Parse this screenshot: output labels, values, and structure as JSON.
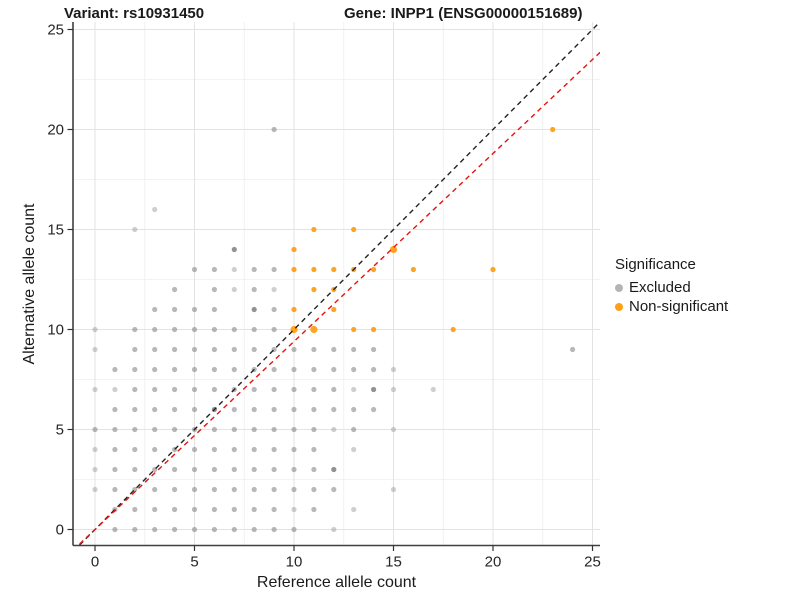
{
  "titles": {
    "variant": "Variant: rs10931450",
    "gene": "Gene: INPP1 (ENSG00000151689)"
  },
  "axes": {
    "x_label": "Reference allele count",
    "y_label": "Alternative allele count",
    "x_ticks": [
      0,
      5,
      10,
      15,
      20,
      25
    ],
    "y_ticks": [
      0,
      5,
      10,
      15,
      20,
      25
    ]
  },
  "legend": {
    "title": "Significance",
    "items": [
      {
        "label": "Excluded",
        "color": "#b4b4b4"
      },
      {
        "label": "Non-significant",
        "color": "#ffa018"
      }
    ]
  },
  "colors": {
    "excluded_base": "#8c8c8c",
    "non_significant": "#ffa018",
    "identity_line": "#222222",
    "ratio_line": "#e8120c",
    "grid_major": "#e3e3e3",
    "grid_minor": "#efefef",
    "axis_line": "#404040",
    "tick_text": "#262626"
  },
  "chart_data": {
    "type": "scatter",
    "title": "Variant: rs10931450 / Gene: INPP1 (ENSG00000151689)",
    "xlabel": "Reference allele count",
    "ylabel": "Alternative allele count",
    "xlim": [
      -1.1,
      25.4
    ],
    "ylim": [
      -0.8,
      25.4
    ],
    "grid": {
      "major_step": 5,
      "minor_step": 2.5,
      "major_breaks": [
        0,
        5,
        10,
        15,
        20,
        25
      ],
      "minor_breaks": [
        2.5,
        7.5,
        12.5,
        17.5,
        22.5
      ]
    },
    "legend_position": "right",
    "point_flags": {
      "l": "light (low overlap)",
      "d": "dark (high overlap)",
      "b": "larger point"
    },
    "series": [
      {
        "name": "Excluded",
        "color": "#8c8c8c",
        "points": [
          [
            1,
            0
          ],
          [
            2,
            0
          ],
          [
            3,
            0
          ],
          [
            4,
            0
          ],
          [
            5,
            0
          ],
          [
            6,
            0
          ],
          [
            7,
            0
          ],
          [
            8,
            0
          ],
          [
            9,
            0
          ],
          [
            10,
            0
          ],
          [
            12,
            0,
            "l"
          ],
          [
            1,
            1
          ],
          [
            2,
            1
          ],
          [
            3,
            1
          ],
          [
            4,
            1
          ],
          [
            5,
            1
          ],
          [
            6,
            1
          ],
          [
            7,
            1
          ],
          [
            8,
            1
          ],
          [
            9,
            1
          ],
          [
            10,
            1,
            "l"
          ],
          [
            11,
            1
          ],
          [
            13,
            1,
            "l"
          ],
          [
            0,
            2,
            "l"
          ],
          [
            1,
            2
          ],
          [
            2,
            2
          ],
          [
            3,
            2
          ],
          [
            4,
            2
          ],
          [
            5,
            2
          ],
          [
            6,
            2
          ],
          [
            7,
            2
          ],
          [
            8,
            2
          ],
          [
            9,
            2
          ],
          [
            10,
            2
          ],
          [
            11,
            2
          ],
          [
            12,
            2
          ],
          [
            15,
            2,
            "l"
          ],
          [
            0,
            3,
            "l"
          ],
          [
            1,
            3
          ],
          [
            2,
            3
          ],
          [
            3,
            3
          ],
          [
            4,
            3
          ],
          [
            5,
            3
          ],
          [
            6,
            3
          ],
          [
            7,
            3
          ],
          [
            8,
            3
          ],
          [
            9,
            3
          ],
          [
            10,
            3
          ],
          [
            11,
            3
          ],
          [
            12,
            3,
            "d"
          ],
          [
            0,
            4,
            "l"
          ],
          [
            1,
            4
          ],
          [
            2,
            4
          ],
          [
            3,
            4
          ],
          [
            4,
            4
          ],
          [
            5,
            4
          ],
          [
            6,
            4
          ],
          [
            7,
            4
          ],
          [
            8,
            4
          ],
          [
            9,
            4
          ],
          [
            10,
            4
          ],
          [
            11,
            4
          ],
          [
            13,
            4,
            "l"
          ],
          [
            0,
            5
          ],
          [
            1,
            5
          ],
          [
            2,
            5
          ],
          [
            3,
            5
          ],
          [
            4,
            5
          ],
          [
            5,
            5
          ],
          [
            6,
            5
          ],
          [
            7,
            5
          ],
          [
            8,
            5
          ],
          [
            9,
            5
          ],
          [
            10,
            5
          ],
          [
            11,
            5
          ],
          [
            12,
            5,
            "l"
          ],
          [
            13,
            5
          ],
          [
            15,
            5,
            "l"
          ],
          [
            1,
            6
          ],
          [
            2,
            6
          ],
          [
            3,
            6
          ],
          [
            4,
            6
          ],
          [
            5,
            6
          ],
          [
            6,
            6,
            "d"
          ],
          [
            7,
            6
          ],
          [
            8,
            6
          ],
          [
            9,
            6
          ],
          [
            10,
            6
          ],
          [
            11,
            6
          ],
          [
            12,
            6
          ],
          [
            13,
            6
          ],
          [
            14,
            6
          ],
          [
            0,
            7,
            "l"
          ],
          [
            1,
            7,
            "l"
          ],
          [
            2,
            7
          ],
          [
            3,
            7
          ],
          [
            4,
            7
          ],
          [
            5,
            7
          ],
          [
            6,
            7
          ],
          [
            7,
            7
          ],
          [
            8,
            7
          ],
          [
            9,
            7
          ],
          [
            10,
            7
          ],
          [
            11,
            7
          ],
          [
            12,
            7
          ],
          [
            13,
            7,
            "l"
          ],
          [
            14,
            7,
            "d"
          ],
          [
            15,
            7,
            "l"
          ],
          [
            17,
            7,
            "l"
          ],
          [
            1,
            8
          ],
          [
            2,
            8
          ],
          [
            3,
            8
          ],
          [
            4,
            8
          ],
          [
            5,
            8
          ],
          [
            6,
            8
          ],
          [
            7,
            8
          ],
          [
            8,
            8
          ],
          [
            9,
            8
          ],
          [
            10,
            8
          ],
          [
            11,
            8
          ],
          [
            12,
            8
          ],
          [
            13,
            8
          ],
          [
            14,
            8
          ],
          [
            15,
            8,
            "l"
          ],
          [
            0,
            9,
            "l"
          ],
          [
            2,
            9
          ],
          [
            3,
            9
          ],
          [
            4,
            9
          ],
          [
            5,
            9
          ],
          [
            6,
            9
          ],
          [
            7,
            9
          ],
          [
            8,
            9
          ],
          [
            9,
            9
          ],
          [
            10,
            9
          ],
          [
            11,
            9
          ],
          [
            12,
            9
          ],
          [
            13,
            9
          ],
          [
            14,
            9
          ],
          [
            24,
            9
          ],
          [
            0,
            10,
            "l"
          ],
          [
            2,
            10
          ],
          [
            3,
            10
          ],
          [
            4,
            10
          ],
          [
            5,
            10
          ],
          [
            6,
            10
          ],
          [
            7,
            10
          ],
          [
            8,
            10
          ],
          [
            9,
            10
          ],
          [
            3,
            11
          ],
          [
            4,
            11
          ],
          [
            5,
            11
          ],
          [
            6,
            11
          ],
          [
            8,
            11,
            "d"
          ],
          [
            9,
            11
          ],
          [
            4,
            12
          ],
          [
            6,
            12
          ],
          [
            7,
            12,
            "l"
          ],
          [
            8,
            12
          ],
          [
            9,
            12,
            "l"
          ],
          [
            5,
            13
          ],
          [
            6,
            13
          ],
          [
            7,
            13,
            "l"
          ],
          [
            8,
            13
          ],
          [
            9,
            13
          ],
          [
            7,
            14,
            "d"
          ],
          [
            2,
            15,
            "l"
          ],
          [
            3,
            16,
            "l"
          ],
          [
            9,
            20
          ]
        ]
      },
      {
        "name": "Non-significant",
        "color": "#ffa018",
        "points": [
          [
            10,
            10,
            "b"
          ],
          [
            11,
            10,
            "b"
          ],
          [
            13,
            10
          ],
          [
            14,
            10
          ],
          [
            18,
            10
          ],
          [
            10,
            11
          ],
          [
            12,
            11
          ],
          [
            11,
            12
          ],
          [
            12,
            12
          ],
          [
            10,
            13
          ],
          [
            11,
            13
          ],
          [
            12,
            13
          ],
          [
            13,
            13
          ],
          [
            14,
            13
          ],
          [
            16,
            13
          ],
          [
            20,
            13
          ],
          [
            10,
            14
          ],
          [
            15,
            14,
            "b"
          ],
          [
            11,
            15
          ],
          [
            13,
            15
          ],
          [
            23,
            20
          ]
        ]
      }
    ],
    "lines": [
      {
        "name": "identity",
        "style": "dashed",
        "color": "#222222",
        "slope": 1,
        "intercept": 0
      },
      {
        "name": "reference-ratio",
        "style": "dashed",
        "color": "#e8120c",
        "slope": 0.94,
        "intercept": 0
      }
    ]
  }
}
